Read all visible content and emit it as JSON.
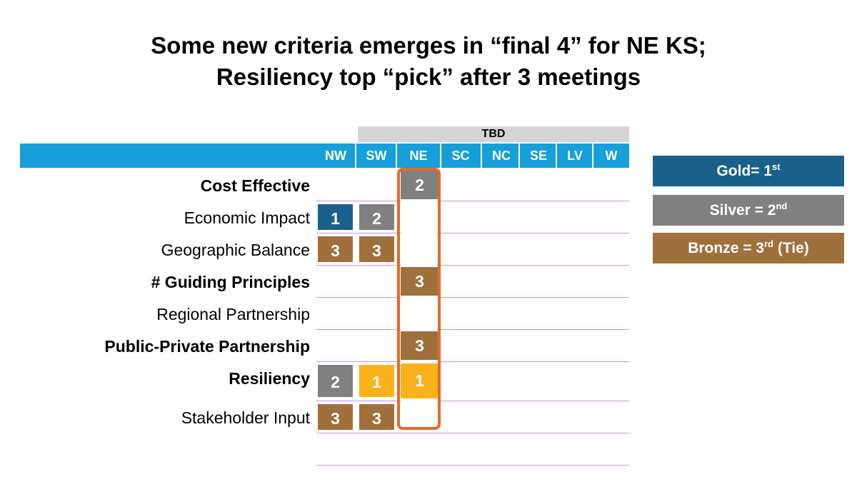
{
  "title": {
    "line1": "Some new criteria emerges in “final 4” for NE KS;",
    "line2": "Resiliency top “pick” after 3 meetings"
  },
  "group_label": "TBD",
  "columns": [
    "NW",
    "SW",
    "NE",
    "SC",
    "NC",
    "SE",
    "LV",
    "W"
  ],
  "rows": [
    {
      "label": "Cost Effective",
      "bold": true,
      "NE": "2"
    },
    {
      "label": "Economic Impact",
      "bold": false,
      "NW": "1",
      "SW": "2"
    },
    {
      "label": "Geographic Balance",
      "bold": false,
      "NW": "3",
      "SW": "3"
    },
    {
      "label": "# Guiding Principles",
      "bold": true,
      "NE": "3"
    },
    {
      "label": "Regional Partnership",
      "bold": false
    },
    {
      "label": "Public-Private Partnership",
      "bold": true,
      "NE": "3"
    },
    {
      "label": "Resiliency",
      "bold": true,
      "NW": "2",
      "SW": "1",
      "NE": "1"
    },
    {
      "label": "Stakeholder Input",
      "bold": false,
      "NW": "3",
      "SW": "3"
    }
  ],
  "legend": {
    "gold_text": "Gold= 1",
    "gold_sup": "st",
    "silver_text": "Silver = 2",
    "silver_sup": "nd",
    "bronze_text": "Bronze = 3",
    "bronze_sup": "rd",
    "bronze_suffix": " (Tie)"
  },
  "colors": {
    "header_blue": "#169fd9",
    "gold": "#19618a",
    "silver": "#808080",
    "bronze": "#a0703c",
    "resiliency_yellow": "#f9b219",
    "ne_highlight": "#e36b2c"
  }
}
